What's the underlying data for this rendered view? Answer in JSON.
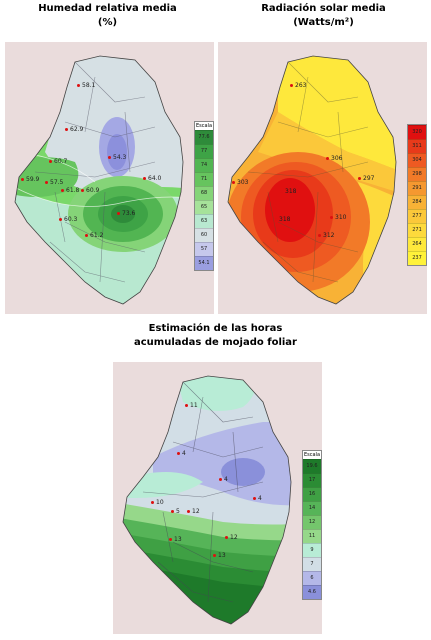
{
  "panels": {
    "humidity": {
      "title_line1": "Humedad relativa media",
      "title_line2": "(%)",
      "legend_title": "Escala",
      "legend": [
        {
          "label": "77.6",
          "color": "#2e8b3a"
        },
        {
          "label": "77",
          "color": "#3ea346"
        },
        {
          "label": "74",
          "color": "#52b552"
        },
        {
          "label": "71",
          "color": "#66c45e"
        },
        {
          "label": "68",
          "color": "#85d478"
        },
        {
          "label": "65",
          "color": "#a6e29a"
        },
        {
          "label": "63",
          "color": "#b8e8d0"
        },
        {
          "label": "60",
          "color": "#d6e0e4"
        },
        {
          "label": "57",
          "color": "#c6c8ec"
        },
        {
          "label": "54.1",
          "color": "#9a9ee0"
        }
      ],
      "stations": [
        {
          "label": "58.1"
        },
        {
          "label": "62.9"
        },
        {
          "label": "54.3"
        },
        {
          "label": "60.7"
        },
        {
          "label": "59.9"
        },
        {
          "label": "57.5"
        },
        {
          "label": "61.8"
        },
        {
          "label": "60.9"
        },
        {
          "label": "64.0"
        },
        {
          "label": "60.3"
        },
        {
          "label": "61.2"
        },
        {
          "label": "73.6"
        }
      ]
    },
    "radiation": {
      "title_line1": "Radiación solar media",
      "title_line2": "(Watts/m²)",
      "legend_title": "",
      "legend": [
        {
          "label": "320",
          "color": "#e01010"
        },
        {
          "label": "311",
          "color": "#e83a1a"
        },
        {
          "label": "304",
          "color": "#ee5a22"
        },
        {
          "label": "298",
          "color": "#f27a28"
        },
        {
          "label": "291",
          "color": "#f59830"
        },
        {
          "label": "284",
          "color": "#f8b236"
        },
        {
          "label": "277",
          "color": "#fbc83a"
        },
        {
          "label": "271",
          "color": "#fdda3c"
        },
        {
          "label": "264",
          "color": "#fee83c"
        },
        {
          "label": "237",
          "color": "#fff23a"
        }
      ],
      "stations": [
        {
          "label": "263"
        },
        {
          "label": "306"
        },
        {
          "label": "297"
        },
        {
          "label": "303"
        },
        {
          "label": "318"
        },
        {
          "label": "310"
        },
        {
          "label": "312"
        },
        {
          "label": "318"
        }
      ]
    },
    "wetness": {
      "title_line1": "Estimación de las horas",
      "title_line2": "acumuladas de mojado foliar",
      "legend_title": "Escala",
      "legend": [
        {
          "label": "19.6",
          "color": "#1e7a2a"
        },
        {
          "label": "17",
          "color": "#2b8c34"
        },
        {
          "label": "16",
          "color": "#3fa044"
        },
        {
          "label": "14",
          "color": "#56b458"
        },
        {
          "label": "12",
          "color": "#74c66c"
        },
        {
          "label": "11",
          "color": "#96d88a"
        },
        {
          "label": "9",
          "color": "#b8ecd6"
        },
        {
          "label": "7",
          "color": "#d2dee6"
        },
        {
          "label": "6",
          "color": "#b4b8e8"
        },
        {
          "label": "4.6",
          "color": "#8a90da"
        }
      ],
      "stations": [
        {
          "label": "11"
        },
        {
          "label": "4"
        },
        {
          "label": "4"
        },
        {
          "label": "4"
        },
        {
          "label": "10"
        },
        {
          "label": "5"
        },
        {
          "label": "12"
        },
        {
          "label": "12"
        },
        {
          "label": "13"
        },
        {
          "label": "13"
        }
      ]
    }
  }
}
